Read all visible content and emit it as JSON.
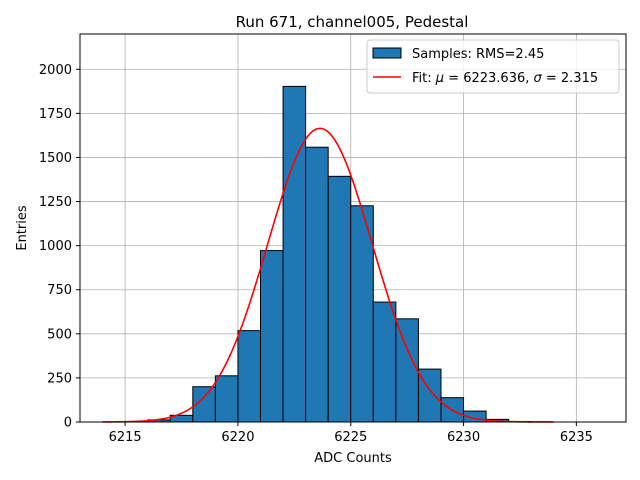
{
  "chart_data": {
    "type": "bar",
    "title": "Run 671, channel005, Pedestal",
    "xlabel": "ADC Counts",
    "ylabel": "Entries",
    "xlim": [
      6213.0,
      6237.2
    ],
    "ylim": [
      0,
      2200
    ],
    "x_ticks": [
      6215,
      6220,
      6225,
      6230,
      6235
    ],
    "y_ticks": [
      0,
      250,
      500,
      750,
      1000,
      1250,
      1500,
      1750,
      2000
    ],
    "grid": true,
    "bin_width": 1.0,
    "bins": [
      {
        "left": 6215,
        "value": 3
      },
      {
        "left": 6216,
        "value": 12
      },
      {
        "left": 6217,
        "value": 38
      },
      {
        "left": 6218,
        "value": 200
      },
      {
        "left": 6219,
        "value": 262
      },
      {
        "left": 6220,
        "value": 518
      },
      {
        "left": 6221,
        "value": 972
      },
      {
        "left": 6222,
        "value": 1903
      },
      {
        "left": 6223,
        "value": 1558
      },
      {
        "left": 6224,
        "value": 1393
      },
      {
        "left": 6225,
        "value": 1226
      },
      {
        "left": 6226,
        "value": 680
      },
      {
        "left": 6227,
        "value": 585
      },
      {
        "left": 6228,
        "value": 300
      },
      {
        "left": 6229,
        "value": 138
      },
      {
        "left": 6230,
        "value": 62
      },
      {
        "left": 6231,
        "value": 15
      },
      {
        "left": 6232,
        "value": 3
      }
    ],
    "bar_color": "#1f77b4",
    "fit": {
      "mu": 6223.636,
      "sigma": 2.315,
      "amplitude": 1665,
      "x_range": [
        6214,
        6234
      ],
      "color": "#ff0000"
    },
    "legend": {
      "placement": "top-right",
      "entries": [
        {
          "label": "Samples: RMS=2.45",
          "kind": "patch",
          "color": "#1f77b4"
        },
        {
          "label_prefix": "Fit: ",
          "mu_symbol": "μ",
          "mu_text": " = 6223.636, ",
          "sigma_symbol": "σ",
          "sigma_text": " = 2.315",
          "kind": "line",
          "color": "#ff0000"
        }
      ]
    }
  }
}
